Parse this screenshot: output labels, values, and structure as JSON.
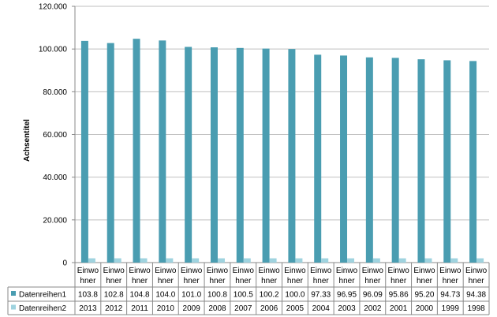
{
  "chart_data": {
    "type": "bar",
    "ylabel": "Achsentitel",
    "ylim": [
      0,
      120000
    ],
    "y_ticks": [
      "0",
      "20.000",
      "40.000",
      "60.000",
      "80.000",
      "100.000",
      "120.000"
    ],
    "y_tick_values": [
      0,
      20000,
      40000,
      60000,
      80000,
      100000,
      120000
    ],
    "grid": true,
    "legend_placement": "bottom-table",
    "category_label_line1": "Einwo",
    "category_label_line2": "hner",
    "series": [
      {
        "name": "Datenreihen1",
        "color": "#4a9db1",
        "values": [
          103800,
          102800,
          104800,
          104000,
          101000,
          100800,
          100500,
          100200,
          100000,
          97330,
          96950,
          96090,
          95860,
          95200,
          94730,
          94380
        ],
        "table_values": [
          "103.8",
          "102.8",
          "104.8",
          "104.0",
          "101.0",
          "100.8",
          "100.5",
          "100.2",
          "100.0",
          "97.33",
          "96.95",
          "96.09",
          "95.86",
          "95.20",
          "94.73",
          "94.38"
        ]
      },
      {
        "name": "Datenreihen2",
        "color": "#9fd3df",
        "values": [
          2013,
          2012,
          2011,
          2010,
          2009,
          2008,
          2007,
          2006,
          2005,
          2004,
          2003,
          2002,
          2001,
          2000,
          1999,
          1998
        ],
        "table_values": [
          "2013",
          "2012",
          "2011",
          "2010",
          "2009",
          "2008",
          "2007",
          "2006",
          "2005",
          "2004",
          "2003",
          "2002",
          "2001",
          "2000",
          "1999",
          "1998"
        ]
      }
    ]
  }
}
